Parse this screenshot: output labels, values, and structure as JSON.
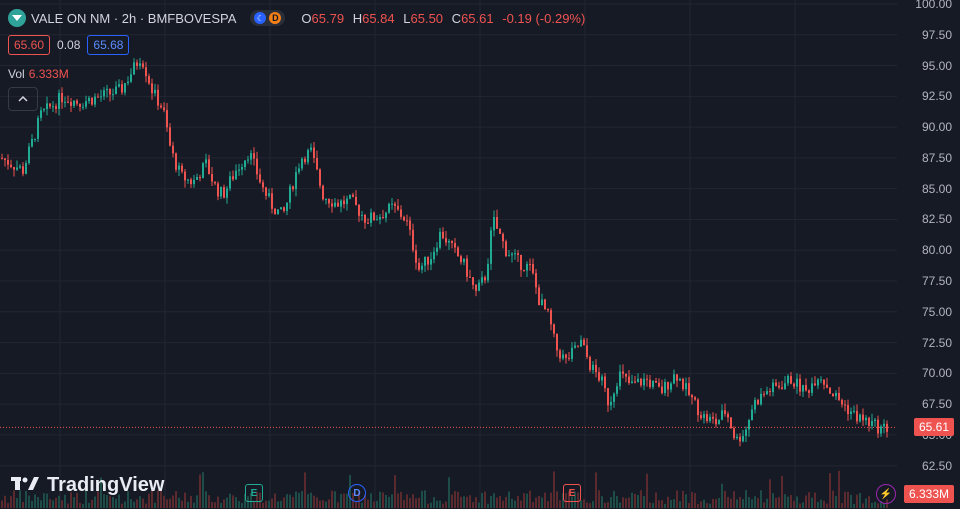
{
  "header": {
    "symbol": "VALE ON NM · 2h · BMFBOVESPA",
    "pill_d": "D",
    "ohlc": {
      "o_k": "O",
      "o": "65.79",
      "h_k": "H",
      "h": "65.84",
      "l_k": "L",
      "l": "65.50",
      "c_k": "C",
      "c": "65.61",
      "chg": "-0.19 (-0.29%)"
    }
  },
  "quote": {
    "bid": "65.60",
    "spread": "0.08",
    "ask": "65.68"
  },
  "volume": {
    "label": "Vol",
    "value": "6.333M"
  },
  "brand": {
    "name": "TradingView"
  },
  "events": {
    "e1": "E",
    "d": "D",
    "e2": "E",
    "bolt": "⚡"
  },
  "last_price": {
    "price": "65.61",
    "volume": "6.333M"
  },
  "colors": {
    "up": "#22ab94",
    "down": "#ef5350",
    "background": "#161a25",
    "grid": "#232632"
  },
  "chart_data": {
    "type": "candlestick",
    "title": "VALE ON NM · 2h · BMFBOVESPA",
    "ylim": [
      61.5,
      100
    ],
    "y_ticks": [
      "100.00",
      "97.50",
      "95.00",
      "92.50",
      "90.00",
      "87.50",
      "85.00",
      "82.50",
      "80.00",
      "77.50",
      "75.00",
      "72.50",
      "70.00",
      "67.50",
      "65.00",
      "62.50"
    ],
    "x_ticks": [],
    "grid": true,
    "close_path": [
      [
        0,
        87.5
      ],
      [
        22,
        86.5
      ],
      [
        40,
        91.0
      ],
      [
        62,
        92.5
      ],
      [
        78,
        92.0
      ],
      [
        100,
        92.5
      ],
      [
        120,
        93.0
      ],
      [
        140,
        95.8
      ],
      [
        152,
        92.8
      ],
      [
        162,
        91.5
      ],
      [
        170,
        88.0
      ],
      [
        180,
        86.0
      ],
      [
        192,
        85.5
      ],
      [
        205,
        87.0
      ],
      [
        215,
        85.0
      ],
      [
        222,
        84.5
      ],
      [
        235,
        86.5
      ],
      [
        248,
        88.0
      ],
      [
        262,
        85.0
      ],
      [
        272,
        83.5
      ],
      [
        282,
        82.8
      ],
      [
        292,
        85.5
      ],
      [
        300,
        87.5
      ],
      [
        310,
        88.0
      ],
      [
        322,
        84.5
      ],
      [
        335,
        83.8
      ],
      [
        350,
        84.0
      ],
      [
        365,
        82.5
      ],
      [
        378,
        82.8
      ],
      [
        392,
        83.5
      ],
      [
        405,
        82.5
      ],
      [
        418,
        78.5
      ],
      [
        430,
        79.5
      ],
      [
        440,
        81.5
      ],
      [
        452,
        80.0
      ],
      [
        462,
        79.0
      ],
      [
        475,
        76.5
      ],
      [
        485,
        78.0
      ],
      [
        492,
        82.5
      ],
      [
        505,
        80.0
      ],
      [
        518,
        79.0
      ],
      [
        530,
        78.5
      ],
      [
        538,
        76.0
      ],
      [
        548,
        74.5
      ],
      [
        555,
        72.0
      ],
      [
        565,
        71.0
      ],
      [
        580,
        72.5
      ],
      [
        590,
        70.5
      ],
      [
        600,
        69.5
      ],
      [
        608,
        67.5
      ],
      [
        618,
        70.0
      ],
      [
        630,
        69.0
      ],
      [
        645,
        69.5
      ],
      [
        660,
        68.5
      ],
      [
        675,
        70.0
      ],
      [
        690,
        68.0
      ],
      [
        702,
        66.5
      ],
      [
        715,
        66.0
      ],
      [
        725,
        67.0
      ],
      [
        735,
        64.5
      ],
      [
        745,
        65.5
      ],
      [
        752,
        67.5
      ],
      [
        765,
        68.5
      ],
      [
        778,
        69.0
      ],
      [
        790,
        69.5
      ],
      [
        805,
        68.5
      ],
      [
        818,
        70.0
      ],
      [
        830,
        68.5
      ],
      [
        842,
        67.5
      ],
      [
        855,
        66.5
      ],
      [
        868,
        66.0
      ],
      [
        880,
        65.5
      ],
      [
        888,
        65.6
      ]
    ],
    "last_price": 65.61,
    "last_volume": "6.333M"
  }
}
